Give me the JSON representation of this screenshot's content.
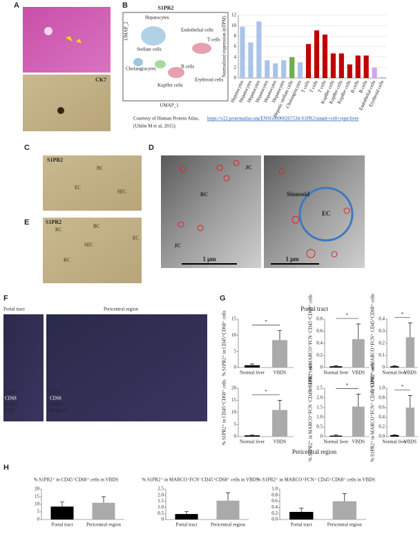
{
  "panels": {
    "letters": [
      "A",
      "B",
      "C",
      "D",
      "E",
      "F",
      "G",
      "H"
    ],
    "A": {
      "label": "CK7"
    },
    "B": {
      "title": "S1PR2",
      "umap": [
        "Hepatocytes",
        "Endothelial cells",
        "Stellate cells",
        "T cells",
        "Cholangiocytes",
        "B cells",
        "Kupffer cells",
        "Erythroid cells"
      ],
      "umap_x": "UMAP_1",
      "umap_y": "UMAP_2",
      "courtesy": "Courtesy of Human Protein Atlas,",
      "link": "https://v22.proteinatlas.org/ENSG00000267534-S1PR2/single+cell+type/liver",
      "citation": "(Uhlén M et al, 2015)"
    },
    "C": {
      "labels": [
        "S1PR2",
        "BC",
        "EC",
        "SEC"
      ]
    },
    "D": {
      "labels": [
        "JC",
        "BC",
        "JC",
        "1 μm",
        "Sinusoid",
        "EC",
        "1 μm"
      ]
    },
    "E": {
      "labels": [
        "S1PR2",
        "KC",
        "BC",
        "EC",
        "SEC",
        "KC"
      ]
    },
    "F": {
      "titles": [
        "Portal tract",
        "Pericentral region"
      ],
      "legend": [
        "CD45",
        "CD68",
        "S1PR2",
        "MARCO",
        "FCN"
      ]
    },
    "G": {
      "titles": [
        "Portal tract",
        "Pericentral region"
      ]
    }
  },
  "chart_data": [
    {
      "type": "bar",
      "ylabel": "Normalized expression (nTPM)",
      "categories": [
        "Hepatocytes",
        "Hepatocytes",
        "Hepatocytes",
        "Hepatocytes",
        "Hepatocytes",
        "Hepatocytes",
        "Hepatic stellate cells",
        "Cholangiocytes",
        "T cells",
        "T cells",
        "T cells",
        "Kupffer cells",
        "Kupffer cells",
        "Kupffer cells",
        "B cells",
        "B cells",
        "Endothelial cells",
        "Erythroid cells"
      ],
      "values": [
        9.8,
        6.8,
        10.8,
        3.4,
        2.8,
        3.4,
        4.0,
        3.0,
        6.5,
        9.1,
        8.3,
        4.7,
        4.7,
        2.6,
        4.3,
        4.3,
        2.0,
        0.2
      ],
      "colors": [
        "#a9c4e8",
        "#a9c4e8",
        "#a9c4e8",
        "#a9c4e8",
        "#a9c4e8",
        "#a9c4e8",
        "#6ab04c",
        "#a9c4e8",
        "#c00000",
        "#c00000",
        "#c00000",
        "#c00000",
        "#c00000",
        "#c00000",
        "#c00000",
        "#c00000",
        "#c9a9e8",
        "#a9c4e8"
      ],
      "ylim": [
        0,
        12
      ],
      "yticks": [
        0,
        2,
        4,
        6,
        8,
        10,
        12
      ],
      "grid": true
    },
    {
      "type": "bar",
      "ylabel": "% S1PR2⁺ in CD45⁺CD68⁺ cells",
      "categories": [
        "Normal liver",
        "VBDS"
      ],
      "values": [
        0.7,
        8.5
      ],
      "errors": [
        0.4,
        3
      ],
      "colors": [
        "#000000",
        "#aaaaaa"
      ],
      "ylim": [
        0,
        15
      ],
      "yticks": [
        0,
        5,
        10,
        15
      ],
      "annotation": "*"
    },
    {
      "type": "bar",
      "ylabel": "% S1PR2⁺ in MARCO⁺FCN⁻CD45⁺CD68⁺ cells",
      "categories": [
        "Normal liver",
        "VBDS"
      ],
      "values": [
        0.02,
        0.47
      ],
      "errors": [
        0.01,
        0.25
      ],
      "colors": [
        "#000000",
        "#aaaaaa"
      ],
      "ylim": [
        0,
        0.8
      ],
      "yticks": [
        0,
        0.2,
        0.4,
        0.6,
        0.8
      ],
      "annotation": "*"
    },
    {
      "type": "bar",
      "ylabel": "% S1PR2⁺ in MARCO⁺FCN⁺ CD45⁺CD68⁺ cells",
      "categories": [
        "Normal liver",
        "VBDS"
      ],
      "values": [
        0.01,
        0.25
      ],
      "errors": [
        0.005,
        0.12
      ],
      "colors": [
        "#000000",
        "#aaaaaa"
      ],
      "ylim": [
        0,
        0.4
      ],
      "yticks": [
        0,
        0.1,
        0.2,
        0.3,
        0.4
      ],
      "annotation": "*"
    },
    {
      "type": "bar",
      "ylabel": "% S1PR2⁺ in CD45⁺CD68⁺ cells",
      "categories": [
        "Normal liver",
        "VBDS"
      ],
      "values": [
        0.5,
        11
      ],
      "errors": [
        0.2,
        4
      ],
      "colors": [
        "#000000",
        "#aaaaaa"
      ],
      "ylim": [
        0,
        20
      ],
      "yticks": [
        0,
        5,
        10,
        15,
        20
      ],
      "annotation": "*"
    },
    {
      "type": "bar",
      "ylabel": "% S1PR2⁺ in MARCO⁺FCN⁻CD45⁺CD68⁺ cells",
      "categories": [
        "Normal liver",
        "VBDS"
      ],
      "values": [
        0.05,
        1.55
      ],
      "errors": [
        0.03,
        0.65
      ],
      "colors": [
        "#000000",
        "#aaaaaa"
      ],
      "ylim": [
        0,
        2.5
      ],
      "yticks": [
        0,
        0.5,
        {
          "value": 1,
          "label": "1.0"
        },
        1.5,
        {
          "value": 2,
          "label": "2.0"
        },
        2.5
      ],
      "annotation": "*"
    },
    {
      "type": "bar",
      "ylabel": "% S1PR2⁺ in MARCO⁺FCN⁺ CD45⁺CD68⁺ cells",
      "categories": [
        "Normal liver",
        "VBDS"
      ],
      "values": [
        0.03,
        0.6
      ],
      "errors": [
        0.01,
        0.25
      ],
      "colors": [
        "#000000",
        "#aaaaaa"
      ],
      "ylim": [
        0,
        1
      ],
      "yticks": [
        {
          "value": 0,
          "label": "0.0"
        },
        0.2,
        0.4,
        0.6,
        0.8,
        {
          "value": 1,
          "label": "1.0"
        }
      ],
      "annotation": "*"
    },
    {
      "type": "bar",
      "title": "% S1PR2⁺ in CD45⁺CD68⁺ cells in VBDS",
      "categories": [
        "Portal tract",
        "Pericentral region"
      ],
      "values": [
        8.5,
        11
      ],
      "errors": [
        3,
        4
      ],
      "colors": [
        "#000000",
        "#aaaaaa"
      ],
      "ylim": [
        0,
        20
      ],
      "yticks": [
        0,
        5,
        10,
        15,
        20
      ]
    },
    {
      "type": "bar",
      "title": "% S1PR2⁺ in MARCO⁺FCN⁻CD45⁺CD68⁺ cells in VBDS",
      "categories": [
        "Portal tract",
        "Pericentral region"
      ],
      "values": [
        0.45,
        1.55
      ],
      "errors": [
        0.2,
        0.65
      ],
      "colors": [
        "#000000",
        "#aaaaaa"
      ],
      "ylim": [
        0,
        2.5
      ],
      "yticks": [
        0,
        0.5,
        {
          "value": 1,
          "label": "1.0"
        },
        1.5,
        {
          "value": 2,
          "label": "2.0"
        },
        2.5
      ]
    },
    {
      "type": "bar",
      "title": "% S1PR2⁺ in MARCO⁺FCN⁺ CD45⁺CD68⁺ cells in VBDS",
      "categories": [
        "Portal tract",
        "Pericentral region"
      ],
      "values": [
        0.25,
        0.6
      ],
      "errors": [
        0.12,
        0.25
      ],
      "colors": [
        "#000000",
        "#aaaaaa"
      ],
      "ylim": [
        0,
        1
      ],
      "yticks": [
        {
          "value": 0,
          "label": "0.0"
        },
        0.2,
        0.4,
        0.6,
        0.8,
        {
          "value": 1,
          "label": "1.0"
        }
      ]
    }
  ]
}
